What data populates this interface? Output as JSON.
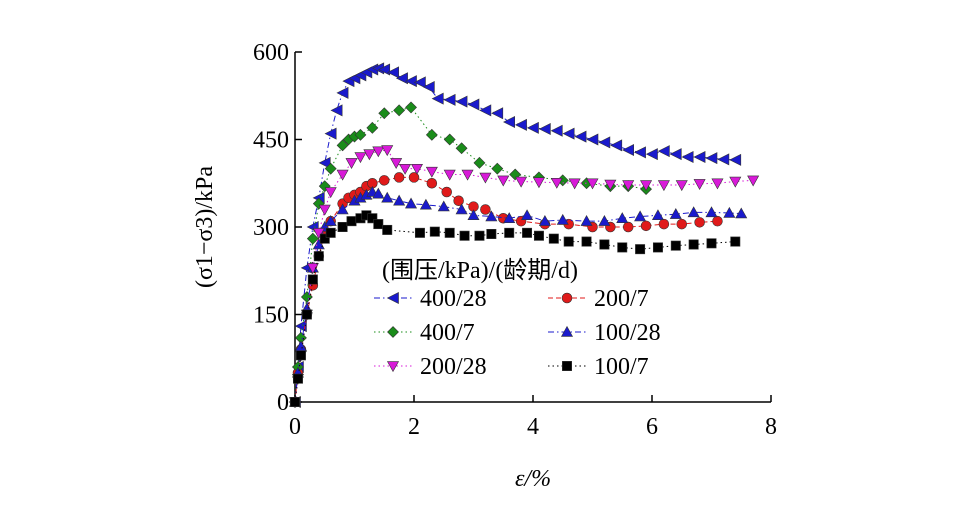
{
  "chart_data": {
    "type": "scatter",
    "title": "",
    "xlabel": "ε/%",
    "ylabel": "(σ1−σ3)/kPa",
    "xlim": [
      0,
      8
    ],
    "ylim": [
      0,
      600
    ],
    "xticks": [
      0,
      2,
      4,
      6,
      8
    ],
    "yticks": [
      0,
      150,
      300,
      450,
      600
    ],
    "xtick_labels": [
      "0",
      "2",
      "4",
      "6",
      "8"
    ],
    "ytick_labels": [
      "0",
      "150",
      "300",
      "450",
      "600"
    ],
    "legend_title": "(围压/kPa)/(龄期/d)",
    "legend_position": "center-right",
    "grid": false,
    "series": [
      {
        "name": "400/28",
        "marker": "triangle-left",
        "color": "#1a1acc",
        "line": "dashdot",
        "x": [
          0,
          0.05,
          0.1,
          0.2,
          0.3,
          0.4,
          0.5,
          0.6,
          0.7,
          0.8,
          0.9,
          1.0,
          1.1,
          1.2,
          1.3,
          1.4,
          1.5,
          1.65,
          1.8,
          1.95,
          2.1,
          2.25,
          2.4,
          2.6,
          2.8,
          3.0,
          3.2,
          3.4,
          3.6,
          3.8,
          4.0,
          4.2,
          4.4,
          4.6,
          4.8,
          5.0,
          5.2,
          5.4,
          5.6,
          5.8,
          6.0,
          6.2,
          6.4,
          6.6,
          6.8,
          7.0,
          7.2,
          7.4
        ],
        "y": [
          0,
          60,
          130,
          230,
          300,
          350,
          410,
          460,
          500,
          530,
          550,
          555,
          560,
          565,
          570,
          572,
          570,
          565,
          555,
          550,
          548,
          540,
          520,
          518,
          515,
          510,
          500,
          495,
          480,
          475,
          470,
          468,
          465,
          460,
          455,
          450,
          445,
          440,
          432,
          428,
          425,
          430,
          425,
          420,
          420,
          418,
          416,
          415
        ]
      },
      {
        "name": "200/7",
        "marker": "circle",
        "color": "#e01a1a",
        "line": "dashed",
        "x": [
          0,
          0.05,
          0.1,
          0.2,
          0.3,
          0.4,
          0.5,
          0.6,
          0.8,
          0.9,
          1.0,
          1.1,
          1.2,
          1.3,
          1.5,
          1.75,
          2.0,
          2.3,
          2.55,
          2.75,
          3.0,
          3.2,
          3.5,
          3.8,
          4.2,
          4.6,
          5.0,
          5.3,
          5.6,
          5.9,
          6.2,
          6.5,
          6.8,
          7.1
        ],
        "y": [
          0,
          50,
          90,
          150,
          200,
          250,
          290,
          310,
          340,
          350,
          355,
          360,
          370,
          375,
          380,
          385,
          385,
          375,
          360,
          345,
          335,
          330,
          315,
          310,
          305,
          305,
          300,
          300,
          300,
          302,
          305,
          305,
          308,
          310
        ]
      },
      {
        "name": "400/7",
        "marker": "diamond",
        "color": "#1a8c1a",
        "line": "dotted",
        "x": [
          0,
          0.05,
          0.1,
          0.2,
          0.3,
          0.4,
          0.5,
          0.6,
          0.8,
          0.9,
          1.0,
          1.1,
          1.3,
          1.5,
          1.75,
          1.95,
          2.3,
          2.6,
          2.8,
          3.1,
          3.4,
          3.7,
          4.1,
          4.5,
          4.9,
          5.3,
          5.6,
          5.9
        ],
        "y": [
          0,
          60,
          110,
          180,
          280,
          340,
          370,
          400,
          440,
          450,
          455,
          458,
          470,
          495,
          500,
          505,
          458,
          450,
          435,
          410,
          400,
          390,
          385,
          380,
          375,
          370,
          370,
          365
        ]
      },
      {
        "name": "100/28",
        "marker": "triangle-up",
        "color": "#1a1acc",
        "line": "dashdot",
        "x": [
          0,
          0.05,
          0.1,
          0.2,
          0.3,
          0.4,
          0.5,
          0.6,
          0.8,
          1.0,
          1.1,
          1.2,
          1.3,
          1.4,
          1.55,
          1.75,
          1.95,
          2.2,
          2.5,
          2.8,
          3.0,
          3.3,
          3.6,
          3.9,
          4.2,
          4.5,
          4.9,
          5.2,
          5.5,
          5.8,
          6.1,
          6.4,
          6.7,
          7.0,
          7.3,
          7.5
        ],
        "y": [
          0,
          50,
          95,
          160,
          230,
          270,
          300,
          310,
          330,
          345,
          350,
          355,
          360,
          357,
          350,
          345,
          340,
          338,
          335,
          330,
          320,
          318,
          315,
          320,
          310,
          312,
          310,
          310,
          315,
          318,
          320,
          322,
          325,
          325,
          324,
          323
        ]
      },
      {
        "name": "200/28",
        "marker": "triangle-down",
        "color": "#d81ad8",
        "line": "dotted",
        "x": [
          0,
          0.05,
          0.1,
          0.2,
          0.3,
          0.4,
          0.5,
          0.6,
          0.8,
          0.95,
          1.1,
          1.25,
          1.4,
          1.55,
          1.7,
          1.85,
          2.05,
          2.3,
          2.6,
          2.9,
          3.2,
          3.5,
          3.8,
          4.1,
          4.4,
          4.7,
          5.0,
          5.3,
          5.6,
          5.9,
          6.2,
          6.5,
          6.8,
          7.1,
          7.4,
          7.7
        ],
        "y": [
          0,
          40,
          80,
          150,
          230,
          290,
          330,
          360,
          390,
          410,
          420,
          425,
          430,
          432,
          410,
          400,
          400,
          395,
          390,
          390,
          385,
          380,
          378,
          377,
          376,
          375,
          375,
          373,
          372,
          372,
          372,
          372,
          374,
          375,
          378,
          380
        ]
      },
      {
        "name": "100/7",
        "marker": "square",
        "color": "#000000",
        "line": "dotted",
        "x": [
          0,
          0.05,
          0.1,
          0.2,
          0.3,
          0.4,
          0.5,
          0.6,
          0.8,
          0.95,
          1.1,
          1.2,
          1.3,
          1.4,
          1.55,
          2.1,
          2.35,
          2.6,
          2.85,
          3.1,
          3.3,
          3.6,
          3.9,
          4.1,
          4.35,
          4.6,
          4.9,
          5.2,
          5.5,
          5.8,
          6.1,
          6.4,
          6.7,
          7.0,
          7.4
        ],
        "y": [
          0,
          40,
          80,
          150,
          210,
          250,
          280,
          290,
          300,
          310,
          315,
          320,
          315,
          305,
          295,
          290,
          292,
          290,
          285,
          285,
          288,
          290,
          290,
          285,
          280,
          275,
          275,
          270,
          265,
          262,
          265,
          268,
          270,
          272,
          275
        ]
      }
    ]
  }
}
